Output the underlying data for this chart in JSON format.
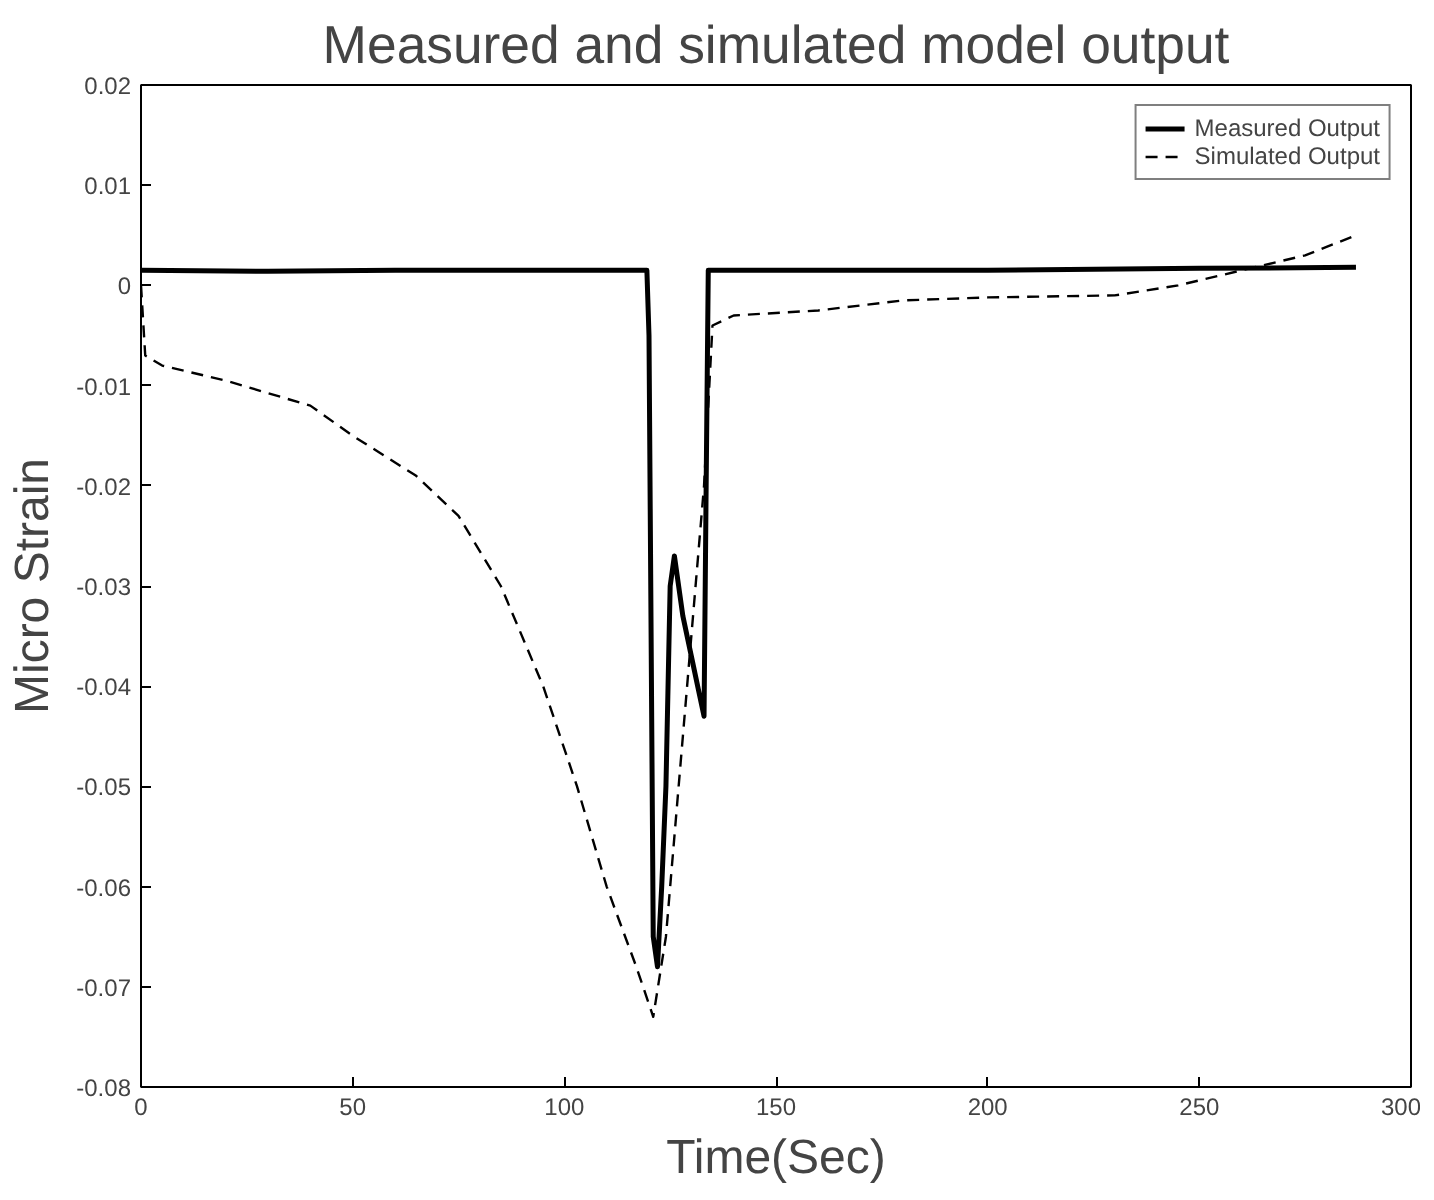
{
  "chart_data": {
    "type": "line",
    "title": "Measured and simulated model output",
    "xlabel": "Time(Sec)",
    "ylabel": "Micro Strain",
    "xlim": [
      0,
      300
    ],
    "ylim": [
      -0.08,
      0.02
    ],
    "xticks": [
      0,
      50,
      100,
      150,
      200,
      250,
      300
    ],
    "yticks": [
      -0.08,
      -0.07,
      -0.06,
      -0.05,
      -0.04,
      -0.03,
      -0.02,
      -0.01,
      0,
      0.01,
      0.02
    ],
    "grid": false,
    "legend": "top right",
    "series": [
      {
        "name": "Measured Output",
        "color": "#000000",
        "line_style": "solid",
        "x": [
          0,
          30,
          60,
          90,
          119.5,
          120,
          121,
          122,
          123,
          124,
          125,
          126,
          128,
          130,
          132,
          133,
          133.5,
          134,
          160,
          200,
          250,
          287
        ],
        "values": [
          0.0015,
          0.0014,
          0.0015,
          0.0015,
          0.0015,
          -0.005,
          -0.065,
          -0.068,
          -0.06,
          -0.05,
          -0.03,
          -0.027,
          -0.033,
          -0.037,
          -0.041,
          -0.043,
          -0.02,
          0.0015,
          0.0015,
          0.0015,
          0.0017,
          0.0018
        ]
      },
      {
        "name": "Simulated Output",
        "color": "#000000",
        "line_style": "dashed",
        "x": [
          0,
          1,
          5,
          20,
          40,
          50,
          65,
          75,
          85,
          95,
          103,
          110,
          117,
          121,
          124,
          128,
          130,
          133,
          135,
          140,
          160,
          180,
          200,
          230,
          245,
          260,
          275,
          287
        ],
        "values": [
          0,
          -0.007,
          -0.008,
          -0.0095,
          -0.012,
          -0.015,
          -0.019,
          -0.023,
          -0.03,
          -0.04,
          -0.05,
          -0.06,
          -0.068,
          -0.073,
          -0.065,
          -0.045,
          -0.035,
          -0.02,
          -0.004,
          -0.003,
          -0.0025,
          -0.0015,
          -0.0012,
          -0.001,
          0,
          0.0015,
          0.003,
          0.005
        ]
      }
    ]
  }
}
